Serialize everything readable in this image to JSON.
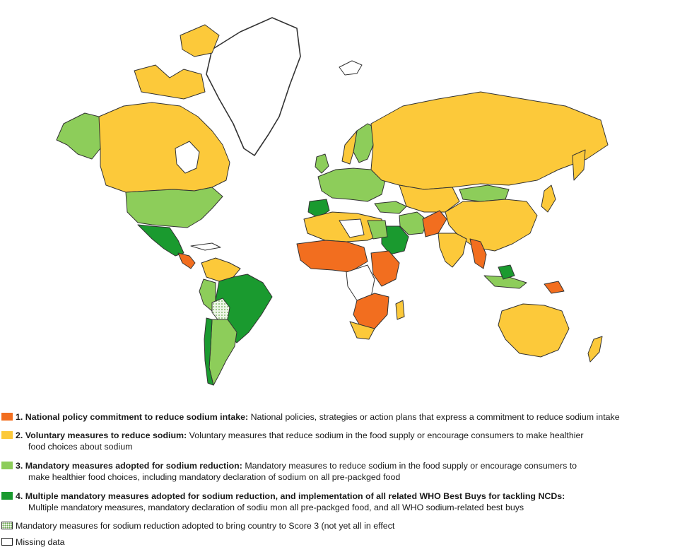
{
  "colors": {
    "score1": "#f26e1f",
    "score2": "#fcc93a",
    "score3": "#8dcd5a",
    "score4": "#1a9a2f",
    "partial_dots": "#6aa84f",
    "missing": "#ffffff",
    "border": "#333333"
  },
  "legend": {
    "items": [
      {
        "number": "1.",
        "title": "National policy commitment to reduce sodium intake:",
        "desc": "National policies, strategies or action plans that express a commitment to reduce sodium intake",
        "desc2": ""
      },
      {
        "number": "2.",
        "title": "Voluntary measures to reduce sodium:",
        "desc": "Voluntary measures that reduce sodium in the food supply or encourage consumers to make healthier",
        "desc2": "food choices about sodium"
      },
      {
        "number": "3.",
        "title": "Mandatory measures adopted for sodium reduction:",
        "desc": "Mandatory measures to reduce sodium in the food supply or encourage consumers to",
        "desc2": "make healthier food choices, including mandatory declaration of sodium on all pre-packged food"
      },
      {
        "number": "4.",
        "title": "Multiple mandatory measures adopted for sodium reduction, and implementation of all related WHO Best Buys for tackling NCDs:",
        "desc": "",
        "desc2": "Multiple mandatory measures, mandatory declaration of sodiu mon all pre-packged food, and all WHO sodium-related best buys"
      }
    ],
    "partial": "Mandatory measures for sodium reduction adopted to bring country to Score 3 (not yet all in effect",
    "missing": "Missing data"
  }
}
